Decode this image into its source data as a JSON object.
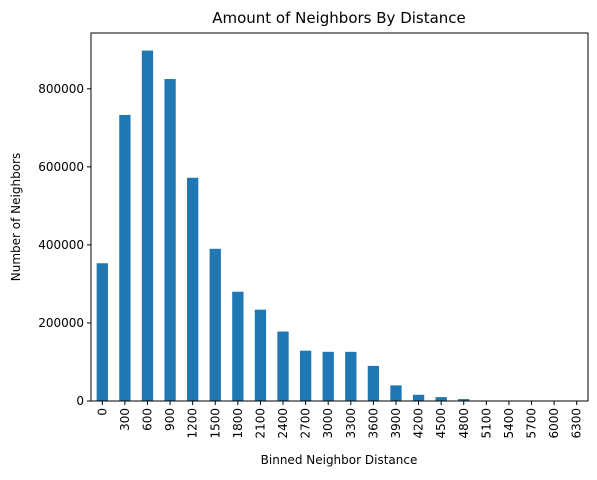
{
  "chart_data": {
    "type": "bar",
    "title": "Amount of Neighbors By Distance",
    "xlabel": "Binned Neighbor Distance",
    "ylabel": "Number of Neighbors",
    "categories": [
      "0",
      "300",
      "600",
      "900",
      "1200",
      "1500",
      "1800",
      "2100",
      "2400",
      "2700",
      "3000",
      "3300",
      "3600",
      "3900",
      "4200",
      "4500",
      "4800",
      "5100",
      "5400",
      "5700",
      "6000",
      "6300"
    ],
    "values": [
      353000,
      733000,
      898000,
      825000,
      572000,
      390000,
      280000,
      234000,
      178000,
      129000,
      126000,
      126000,
      90000,
      40000,
      16000,
      10000,
      5000,
      1000,
      500,
      300,
      200,
      100
    ],
    "ylim": [
      0,
      943000
    ],
    "yticks": [
      0,
      200000,
      400000,
      600000,
      800000
    ],
    "ytick_labels": [
      "0",
      "200000",
      "400000",
      "600000",
      "800000"
    ],
    "grid": false,
    "legend": "none",
    "bar_color": "#1f77b4"
  }
}
